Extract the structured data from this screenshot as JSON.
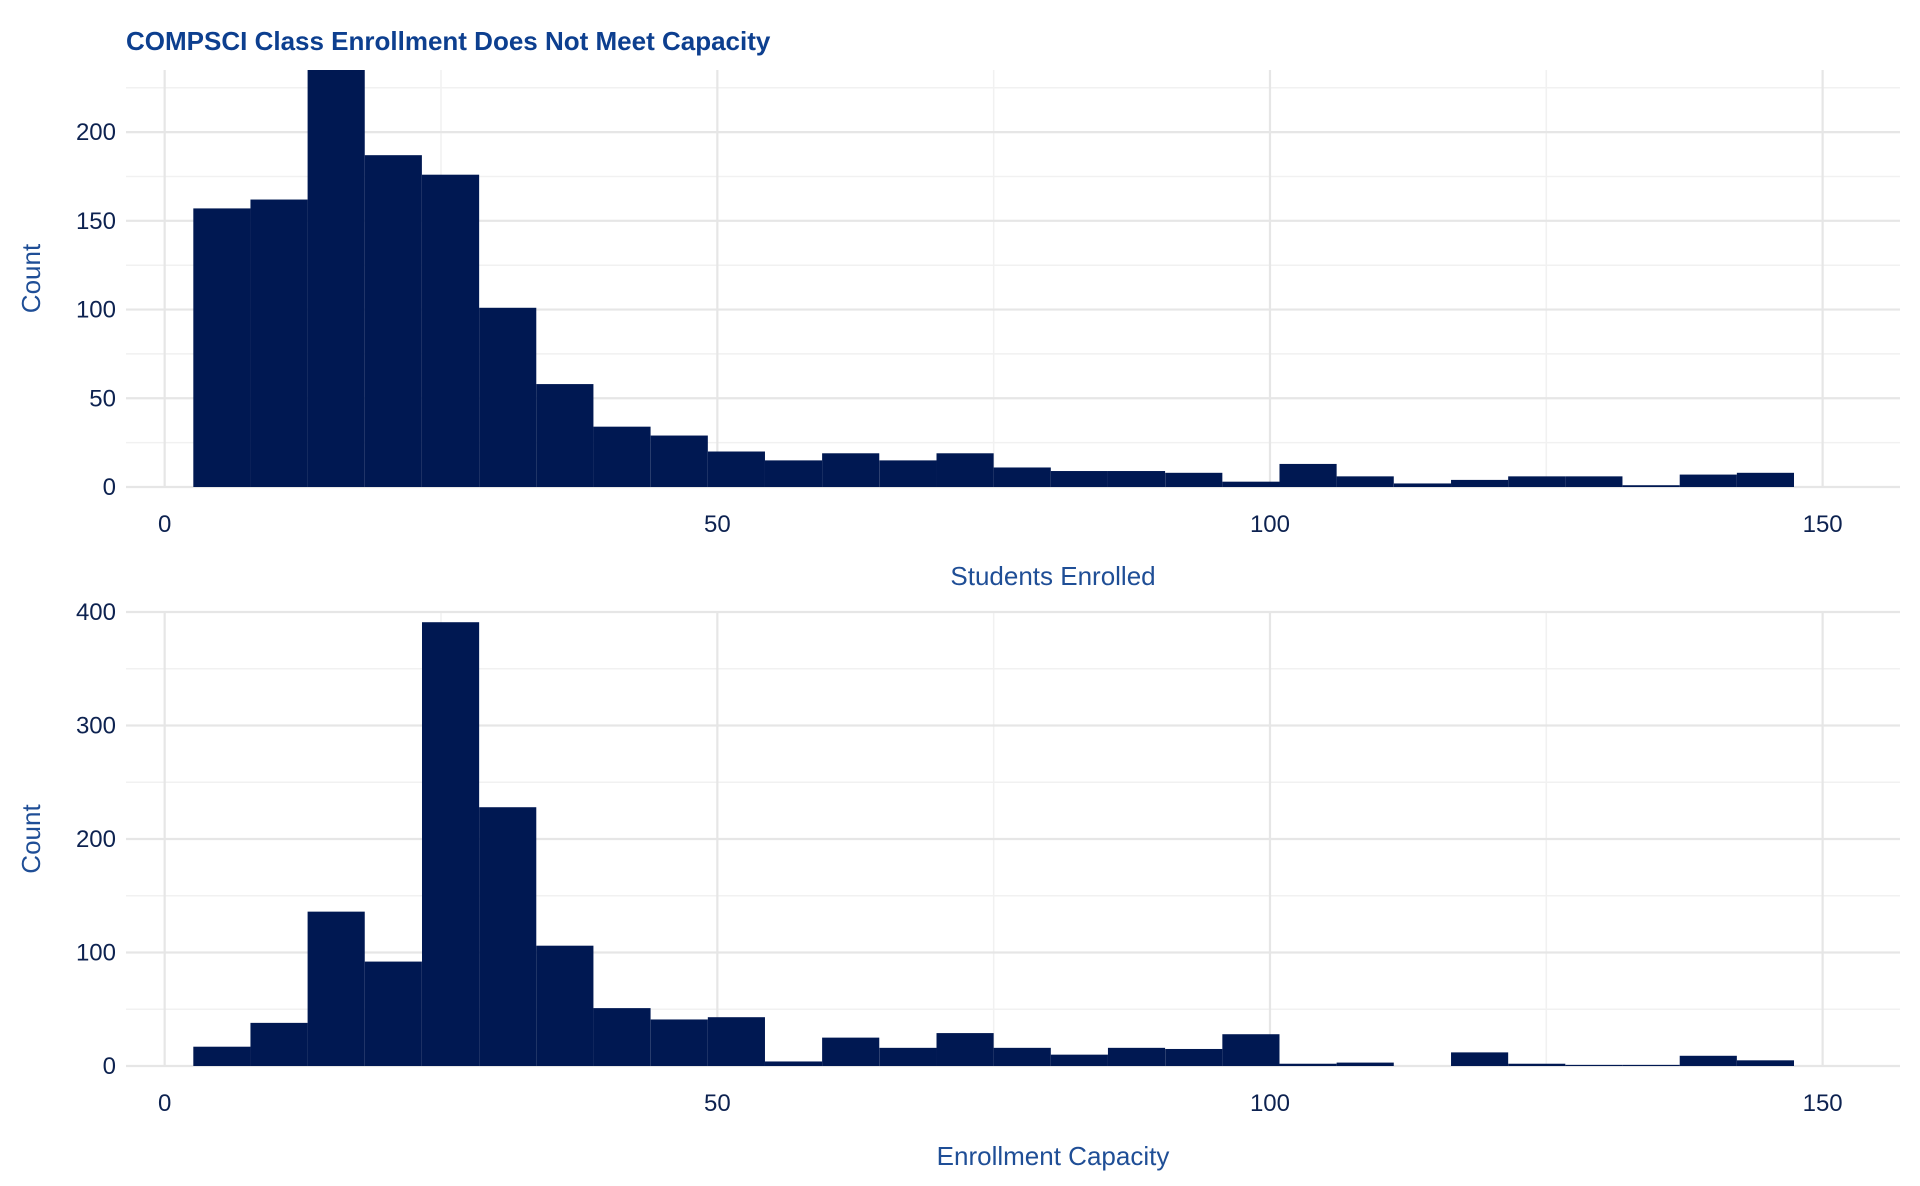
{
  "colors": {
    "title": "#0d3f8f",
    "axis_title": "#1f4e96",
    "tick_label": "#0d2250",
    "bar_fill": "#001852",
    "grid_major": "#e6e6e6",
    "grid_minor": "#f1f1f1",
    "background": "#ffffff"
  },
  "chart_data": [
    {
      "type": "bar",
      "title": "COMPSCI Class Enrollment Does Not Meet Capacity",
      "xlabel": "Students Enrolled",
      "ylabel": "Count",
      "xlim": [
        -3.5,
        157
      ],
      "ylim": [
        0,
        235
      ],
      "x_ticks": [
        0,
        50,
        100,
        150
      ],
      "y_ticks": [
        0,
        50,
        100,
        150,
        200
      ],
      "grid": true,
      "bin_width": 5.17,
      "bin_starts": [
        2.59,
        7.76,
        12.93,
        18.1,
        23.28,
        28.45,
        33.62,
        38.79,
        43.97,
        49.14,
        54.31,
        59.48,
        64.66,
        69.83,
        75.0,
        80.17,
        85.34,
        90.52,
        95.69,
        100.86,
        106.03,
        111.21,
        116.38,
        121.55,
        126.72,
        131.9,
        137.07,
        142.24
      ],
      "values": [
        157,
        162,
        235,
        187,
        176,
        101,
        58,
        34,
        29,
        20,
        15,
        19,
        15,
        19,
        11,
        9,
        9,
        8,
        3,
        13,
        6,
        2,
        4,
        6,
        6,
        1,
        7,
        8
      ]
    },
    {
      "type": "bar",
      "title": "",
      "xlabel": "Enrollment Capacity",
      "ylabel": "Count",
      "xlim": [
        -3.5,
        157
      ],
      "ylim": [
        0,
        400
      ],
      "x_ticks": [
        0,
        50,
        100,
        150
      ],
      "y_ticks": [
        0,
        100,
        200,
        300,
        400
      ],
      "grid": true,
      "bin_width": 5.17,
      "bin_starts": [
        2.59,
        7.76,
        12.93,
        18.1,
        23.28,
        28.45,
        33.62,
        38.79,
        43.97,
        49.14,
        54.31,
        59.48,
        64.66,
        69.83,
        75.0,
        80.17,
        85.34,
        90.52,
        95.69,
        100.86,
        106.03,
        111.21,
        116.38,
        121.55,
        126.72,
        131.9,
        137.07,
        142.24
      ],
      "values": [
        17,
        38,
        136,
        92,
        391,
        228,
        106,
        51,
        41,
        43,
        4,
        25,
        16,
        29,
        16,
        10,
        16,
        15,
        28,
        2,
        3,
        0,
        12,
        2,
        1,
        1,
        9,
        5
      ]
    }
  ]
}
